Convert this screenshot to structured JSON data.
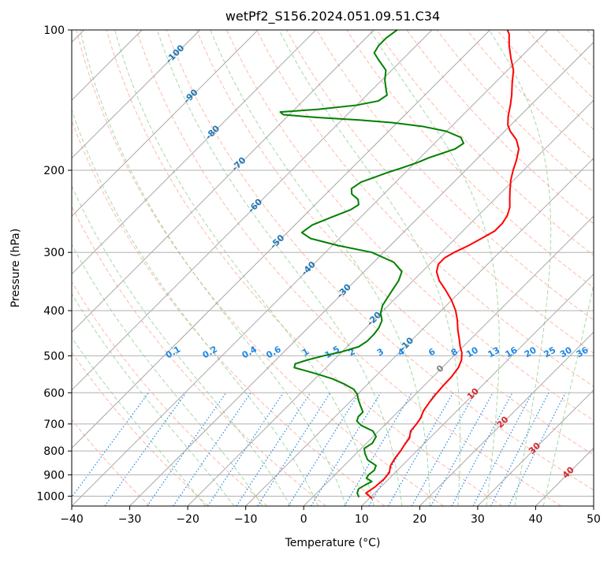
{
  "chart_data": {
    "type": "line",
    "title": "wetPf2_S156.2024.051.09.51.C34",
    "xlabel": "Temperature (°C)",
    "ylabel": "Pressure (hPa)",
    "xlim": [
      -40,
      50
    ],
    "ylim": [
      1050,
      100
    ],
    "yscale": "log",
    "grid": true,
    "x_ticks": [
      -40,
      -30,
      -20,
      -10,
      0,
      10,
      20,
      30,
      40,
      50
    ],
    "y_ticks": [
      1000,
      900,
      800,
      700,
      600,
      500,
      400,
      300,
      200,
      100
    ],
    "skew_degrees": 45,
    "series": [
      {
        "role": "temperature",
        "color": "#ff0000",
        "points": [
          [
            10.5,
            1012
          ],
          [
            8.5,
            985
          ],
          [
            9.0,
            955
          ],
          [
            9.2,
            920
          ],
          [
            9.0,
            890
          ],
          [
            8.0,
            860
          ],
          [
            7.5,
            830
          ],
          [
            7.2,
            800
          ],
          [
            6.8,
            775
          ],
          [
            6.5,
            750
          ],
          [
            5.5,
            725
          ],
          [
            5.3,
            700
          ],
          [
            5.0,
            680
          ],
          [
            4.2,
            655
          ],
          [
            3.8,
            630
          ],
          [
            3.5,
            605
          ],
          [
            3.3,
            580
          ],
          [
            3.2,
            555
          ],
          [
            2.8,
            530
          ],
          [
            2.0,
            510
          ],
          [
            0.8,
            492
          ],
          [
            -0.5,
            478
          ],
          [
            -2.0,
            460
          ],
          [
            -3.8,
            440
          ],
          [
            -5.5,
            420
          ],
          [
            -7.5,
            400
          ],
          [
            -10.0,
            380
          ],
          [
            -13.0,
            360
          ],
          [
            -15.5,
            345
          ],
          [
            -17.5,
            330
          ],
          [
            -18.5,
            318
          ],
          [
            -18.5,
            308
          ],
          [
            -17.8,
            300
          ],
          [
            -16.5,
            290
          ],
          [
            -15.5,
            280
          ],
          [
            -14.5,
            270
          ],
          [
            -14.5,
            260
          ],
          [
            -15.0,
            250
          ],
          [
            -16.0,
            240
          ],
          [
            -17.5,
            230
          ],
          [
            -19.0,
            220
          ],
          [
            -20.5,
            210
          ],
          [
            -21.8,
            200
          ],
          [
            -23.0,
            190
          ],
          [
            -24.5,
            180
          ],
          [
            -26.5,
            172
          ],
          [
            -29.0,
            165
          ],
          [
            -30.5,
            160
          ],
          [
            -32.0,
            153
          ],
          [
            -33.5,
            145
          ],
          [
            -35.0,
            138
          ],
          [
            -37.0,
            130
          ],
          [
            -39.0,
            122
          ],
          [
            -41.5,
            115
          ],
          [
            -44.0,
            108
          ],
          [
            -46.0,
            102
          ],
          [
            -47.0,
            100
          ]
        ]
      },
      {
        "role": "dewpoint",
        "color": "#008000",
        "points": [
          [
            8.0,
            1005
          ],
          [
            7.0,
            985
          ],
          [
            6.5,
            965
          ],
          [
            7.0,
            945
          ],
          [
            7.5,
            930
          ],
          [
            6.0,
            915
          ],
          [
            5.8,
            900
          ],
          [
            6.0,
            880
          ],
          [
            5.5,
            860
          ],
          [
            3.0,
            835
          ],
          [
            1.5,
            810
          ],
          [
            0.5,
            790
          ],
          [
            1.0,
            770
          ],
          [
            0.5,
            745
          ],
          [
            -1.0,
            725
          ],
          [
            -4.0,
            705
          ],
          [
            -5.5,
            690
          ],
          [
            -6.0,
            675
          ],
          [
            -6.0,
            660
          ],
          [
            -7.5,
            640
          ],
          [
            -9.0,
            620
          ],
          [
            -10.0,
            605
          ],
          [
            -11.5,
            590
          ],
          [
            -14.0,
            575
          ],
          [
            -17.0,
            560
          ],
          [
            -21.0,
            545
          ],
          [
            -25.5,
            530
          ],
          [
            -26.0,
            520
          ],
          [
            -24.5,
            510
          ],
          [
            -22.5,
            500
          ],
          [
            -20.0,
            490
          ],
          [
            -18.0,
            478
          ],
          [
            -17.5,
            465
          ],
          [
            -17.5,
            450
          ],
          [
            -17.8,
            435
          ],
          [
            -18.5,
            420
          ],
          [
            -20.0,
            405
          ],
          [
            -21.0,
            390
          ],
          [
            -21.5,
            375
          ],
          [
            -22.0,
            360
          ],
          [
            -22.5,
            345
          ],
          [
            -23.5,
            330
          ],
          [
            -26.5,
            315
          ],
          [
            -32.0,
            300
          ],
          [
            -39.0,
            290
          ],
          [
            -45.0,
            280
          ],
          [
            -47.5,
            272
          ],
          [
            -47.0,
            262
          ],
          [
            -45.0,
            252
          ],
          [
            -43.0,
            243
          ],
          [
            -42.5,
            237
          ],
          [
            -43.5,
            231
          ],
          [
            -45.5,
            225
          ],
          [
            -46.5,
            219
          ],
          [
            -46.0,
            212
          ],
          [
            -44.5,
            207
          ],
          [
            -43.0,
            202
          ],
          [
            -41.5,
            198
          ],
          [
            -40.5,
            195
          ],
          [
            -39.5,
            192
          ],
          [
            -38.5,
            188
          ],
          [
            -37.0,
            184
          ],
          [
            -35.5,
            180
          ],
          [
            -35.0,
            175
          ],
          [
            -36.5,
            170
          ],
          [
            -40.0,
            165
          ],
          [
            -45.0,
            161
          ],
          [
            -51.0,
            158
          ],
          [
            -57.0,
            156
          ],
          [
            -65.0,
            154
          ],
          [
            -71.0,
            152
          ],
          [
            -72.0,
            150
          ],
          [
            -66.0,
            148
          ],
          [
            -60.0,
            145
          ],
          [
            -57.0,
            142
          ],
          [
            -56.5,
            138
          ],
          [
            -58.0,
            133
          ],
          [
            -59.5,
            128
          ],
          [
            -61.0,
            122
          ],
          [
            -64.0,
            116
          ],
          [
            -66.0,
            112
          ],
          [
            -66.5,
            108
          ],
          [
            -66.5,
            104
          ],
          [
            -66.0,
            100
          ]
        ]
      }
    ],
    "dry_adiabats_c": [
      -30,
      -20,
      -10,
      0,
      10,
      20,
      30,
      40,
      50,
      60,
      70,
      80,
      90,
      100,
      110,
      120,
      130,
      140,
      150,
      160,
      170,
      180,
      190,
      200
    ],
    "moist_adiabats_c": [
      -20,
      -15,
      -10,
      -5,
      0,
      5,
      10,
      15,
      20,
      25,
      30,
      35,
      40
    ],
    "mixing_ratio_labels": [
      "0.1",
      "0.2",
      "0.4",
      "0.6",
      "1",
      "1.5",
      "2",
      "3",
      "4",
      "6",
      "8",
      "10",
      "13",
      "16",
      "20",
      "25",
      "30",
      "36"
    ],
    "isotherm_labels": [
      "-100",
      "-90",
      "-80",
      "-70",
      "-60",
      "-50",
      "-40",
      "-30",
      "-20",
      "-10",
      "0",
      "10",
      "20",
      "30",
      "40"
    ],
    "colors": {
      "isotherm_label_cold": "#1f77b4",
      "isotherm_label_zero": "#7f7f7f",
      "isotherm_label_warm": "#d62728",
      "mixing_ratio": "#1e88e5",
      "dry_adiabat": "#ff9b80",
      "moist_adiabat": "#8fcf8f",
      "skewed_isotherm": "#a0a0a0"
    }
  }
}
